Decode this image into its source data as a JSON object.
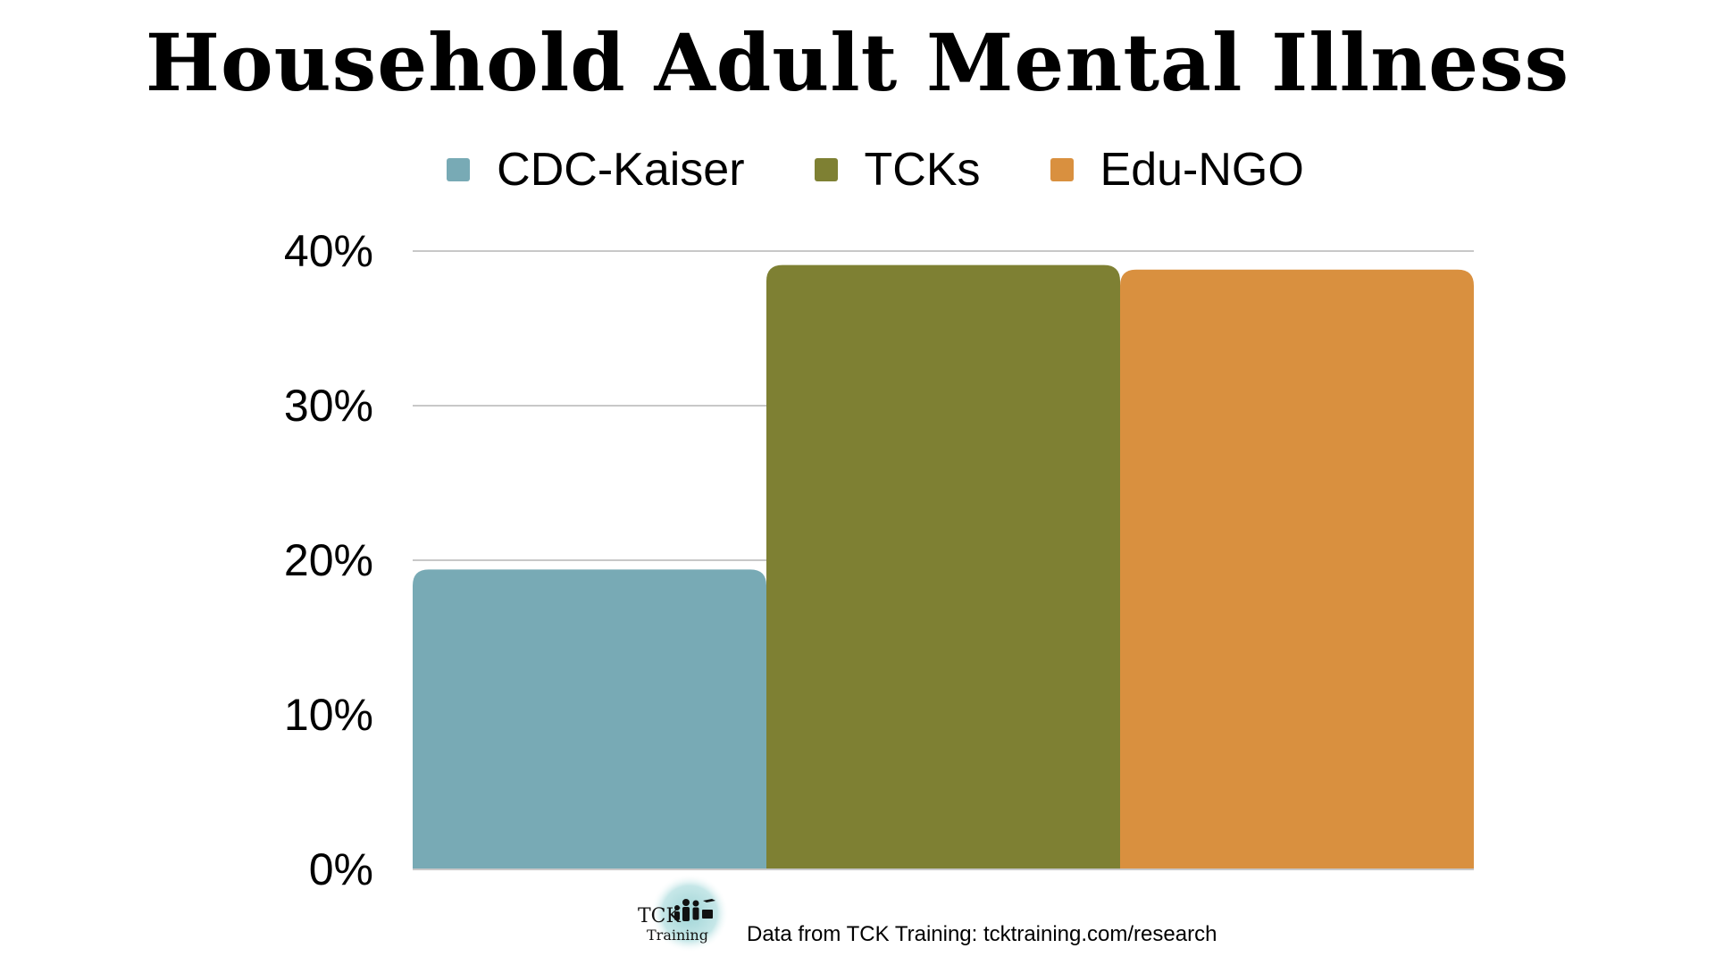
{
  "chart_data": {
    "type": "bar",
    "title": "Household Adult Mental Illness",
    "xlabel": "",
    "ylabel": "",
    "ylim": [
      0,
      40
    ],
    "yticks": [
      "0%",
      "10%",
      "20%",
      "30%",
      "40%"
    ],
    "grid": true,
    "legend_position": "top",
    "series": [
      {
        "name": "CDC-Kaiser",
        "values": [
          19.4
        ],
        "color": "#78aab5"
      },
      {
        "name": "TCKs",
        "values": [
          39.1
        ],
        "color": "#7e8033"
      },
      {
        "name": "Edu-NGO",
        "values": [
          38.8
        ],
        "color": "#d9903f"
      }
    ]
  },
  "footer": {
    "logo_text_top": "TCK",
    "logo_text_bottom": "Training",
    "source": "Data from TCK Training: tcktraining.com/research"
  }
}
